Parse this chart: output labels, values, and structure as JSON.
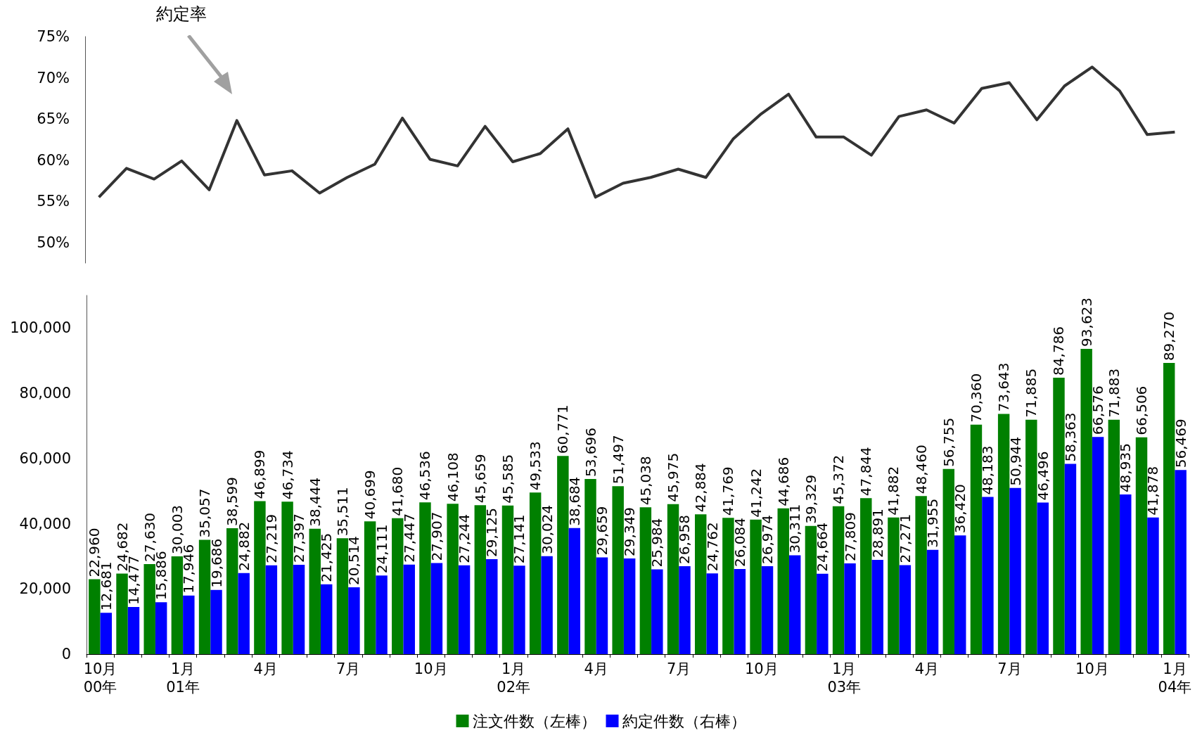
{
  "chart_data": [
    {
      "type": "line",
      "annotations": [
        "約定率"
      ],
      "categories": [
        null,
        null,
        null,
        null,
        null,
        null,
        null,
        null,
        null,
        null,
        null,
        null,
        null,
        null,
        null,
        null,
        null,
        null,
        null,
        null,
        null,
        null,
        null,
        null,
        null,
        null,
        null,
        null,
        null,
        null,
        null,
        null,
        null,
        null,
        null,
        null,
        null,
        null,
        null,
        null
      ],
      "series": [
        {
          "color": "#333333",
          "values": [
            55.5,
            59.0,
            57.7,
            59.9,
            56.4,
            64.8,
            58.2,
            58.7,
            56.0,
            57.9,
            59.5,
            65.1,
            60.1,
            59.3,
            64.1,
            59.8,
            60.8,
            63.8,
            55.5,
            57.2,
            57.9,
            58.9,
            57.9,
            62.6,
            65.6,
            68.0,
            62.8,
            62.8,
            60.6,
            65.3,
            66.1,
            64.5,
            68.7,
            69.4,
            64.9,
            69.0,
            71.3,
            68.4,
            63.1,
            63.4
          ]
        }
      ],
      "ylim": [
        47.5,
        75
      ],
      "yticks": [
        {
          "value": 50,
          "label": "50%"
        },
        {
          "value": 55,
          "label": "55%"
        },
        {
          "value": 60,
          "label": "60%"
        },
        {
          "value": 65,
          "label": "65%"
        },
        {
          "value": 70,
          "label": "70%"
        },
        {
          "value": 75,
          "label": "75%"
        }
      ],
      "tick_labels": "y",
      "grid": false,
      "marker": "none",
      "line_style": "solid"
    },
    {
      "type": "bar",
      "categories": [
        "10月\n00年",
        null,
        null,
        "1月\n01年",
        null,
        null,
        "4月",
        null,
        null,
        "7月",
        null,
        null,
        "10月",
        null,
        null,
        "1月\n02年",
        null,
        null,
        "4月",
        null,
        null,
        "7月",
        null,
        null,
        "10月",
        null,
        null,
        "1月\n03年",
        null,
        null,
        "4月",
        null,
        null,
        "7月",
        null,
        null,
        "10月",
        null,
        null,
        "1月\n04年"
      ],
      "series": [
        {
          "name": "注文件数（左棒）",
          "color": "#008000",
          "values": [
            22960,
            24682,
            27630,
            30003,
            35057,
            38599,
            46899,
            46734,
            38444,
            35511,
            40699,
            41680,
            46536,
            46108,
            45659,
            45585,
            49533,
            60771,
            53696,
            51497,
            45038,
            45975,
            42884,
            41769,
            41242,
            44686,
            39329,
            45372,
            47844,
            41882,
            48460,
            56755,
            70360,
            73643,
            71885,
            84786,
            93623,
            71883,
            66506,
            89270
          ],
          "value_labels": [
            "22,960",
            "24,682",
            "27,630",
            "30,003",
            "35,057",
            "38,599",
            "46,899",
            "46,734",
            "38,444",
            "35,511",
            "40,699",
            "41,680",
            "46,536",
            "46,108",
            "45,659",
            "45,585",
            "49,533",
            "60,771",
            "53,696",
            "51,497",
            "45,038",
            "45,975",
            "42,884",
            "41,769",
            "41,242",
            "44,686",
            "39,329",
            "45,372",
            "47,844",
            "41,882",
            "48,460",
            "56,755",
            "70,360",
            "73,643",
            "71,885",
            "84,786",
            "93,623",
            "71,883",
            "66,506",
            "89,270"
          ]
        },
        {
          "name": "約定件数（右棒）",
          "color": "#0000ff",
          "values": [
            12681,
            14477,
            15886,
            17946,
            19686,
            24882,
            27219,
            27397,
            21425,
            20514,
            24111,
            27447,
            27907,
            27244,
            29125,
            27141,
            30024,
            38684,
            29659,
            29349,
            25984,
            26958,
            24762,
            26084,
            26974,
            30311,
            24664,
            27809,
            28891,
            27271,
            31955,
            36420,
            48183,
            50944,
            46496,
            58363,
            66576,
            48935,
            41878,
            56469
          ],
          "value_labels": [
            "12,681",
            "14,477",
            "15,886",
            "17,946",
            "19,686",
            "24,882",
            "27,219",
            "27,397",
            "21,425",
            "20,514",
            "24,111",
            "27,447",
            "27,907",
            "27,244",
            "29,125",
            "27,141",
            "30,024",
            "38,684",
            "29,659",
            "29,349",
            "25,984",
            "26,958",
            "24,762",
            "26,084",
            "26,974",
            "30,311",
            "24,664",
            "27,809",
            "28,891",
            "27,271",
            "31,955",
            "36,420",
            "48,183",
            "50,944",
            "46,496",
            "58,363",
            "66,576",
            "48,935",
            "41,878",
            "56,469"
          ]
        }
      ],
      "ylim": [
        0,
        110000
      ],
      "yticks": [
        0,
        {
          "value": 20000,
          "label": "20,000"
        },
        {
          "value": 40000,
          "label": "40,000"
        },
        {
          "value": 60000,
          "label": "60,000"
        },
        {
          "value": 80000,
          "label": "80,000"
        },
        {
          "value": 100000,
          "label": "100,000"
        }
      ],
      "legend": "bottom",
      "grid": false
    }
  ]
}
